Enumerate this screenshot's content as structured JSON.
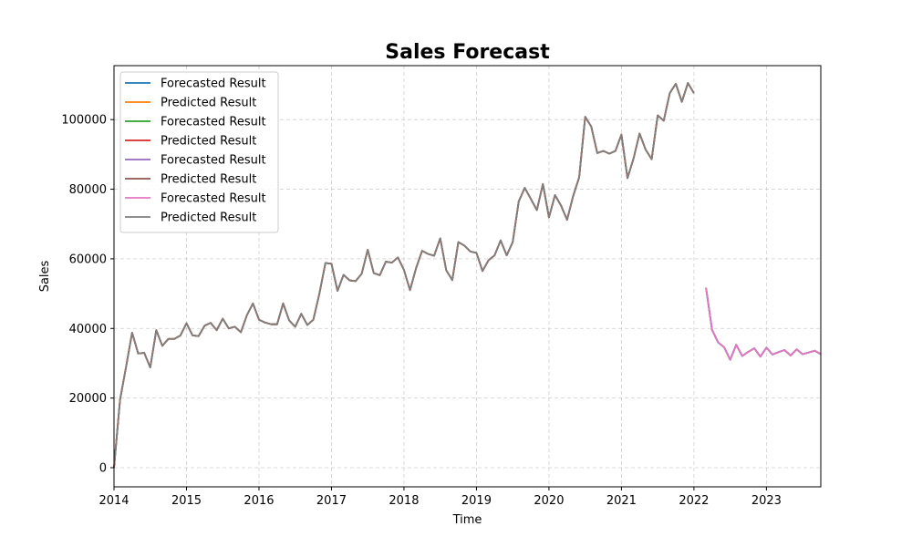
{
  "chart_data": {
    "type": "line",
    "title": "Sales Forecast",
    "xlabel": "Time",
    "ylabel": "Sales",
    "xlim": [
      "2014-01",
      "2023-10"
    ],
    "ylim": [
      -5500,
      115500
    ],
    "x_ticks": [
      "2014",
      "2015",
      "2016",
      "2017",
      "2018",
      "2019",
      "2020",
      "2021",
      "2022",
      "2023"
    ],
    "y_ticks": [
      0,
      20000,
      40000,
      60000,
      80000,
      100000
    ],
    "grid": true,
    "legend_position": "top-left",
    "history": {
      "start": "2014-01",
      "values": [
        0,
        19500,
        29000,
        38800,
        32800,
        33000,
        28800,
        39500,
        35000,
        37000,
        37000,
        38000,
        41500,
        38000,
        37800,
        40800,
        41600,
        39500,
        42800,
        40000,
        40500,
        38900,
        43800,
        47200,
        42500,
        41700,
        41200,
        41200,
        47200,
        42300,
        40500,
        44200,
        41000,
        42500,
        50000,
        58800,
        58600,
        50800,
        55400,
        53800,
        53600,
        55700,
        62600,
        55900,
        55300,
        59200,
        58900,
        60400,
        56800,
        51000,
        57300,
        62300,
        61400,
        60900,
        65900,
        56700,
        53900,
        64800,
        63800,
        62100,
        61700,
        56500,
        59600,
        61000,
        65300,
        61000,
        64800,
        76500,
        80400,
        77200,
        74000,
        81500,
        71900,
        78300,
        75300,
        71200,
        78000,
        83400,
        100800,
        98000,
        90400,
        91000,
        90200,
        91000,
        95700,
        83200,
        88800,
        96000,
        91400,
        88600,
        101200,
        99700,
        107600,
        110300,
        105100,
        110500,
        107600
      ]
    },
    "forecast": {
      "start": "2022-03",
      "values": [
        51700,
        39600,
        36000,
        34600,
        31000,
        35300,
        32100,
        33300,
        34300,
        31900,
        34500,
        32500,
        33200,
        33800,
        32200,
        34000,
        32600,
        33100,
        33600,
        32600
      ]
    },
    "series": [
      {
        "name": "Forecasted Result",
        "color": "#1f77b4",
        "data": "forecast"
      },
      {
        "name": "Predicted Result",
        "color": "#ff7f0e",
        "data": "history"
      },
      {
        "name": "Forecasted Result",
        "color": "#2ca02c",
        "data": "forecast"
      },
      {
        "name": "Predicted Result",
        "color": "#d62728",
        "data": "history"
      },
      {
        "name": "Forecasted Result",
        "color": "#9467bd",
        "data": "forecast"
      },
      {
        "name": "Predicted Result",
        "color": "#8c564b",
        "data": "history"
      },
      {
        "name": "Forecasted Result",
        "color": "#e377c2",
        "data": "forecast"
      },
      {
        "name": "Predicted Result",
        "color": "#7f7f7f",
        "data": "history"
      }
    ]
  }
}
